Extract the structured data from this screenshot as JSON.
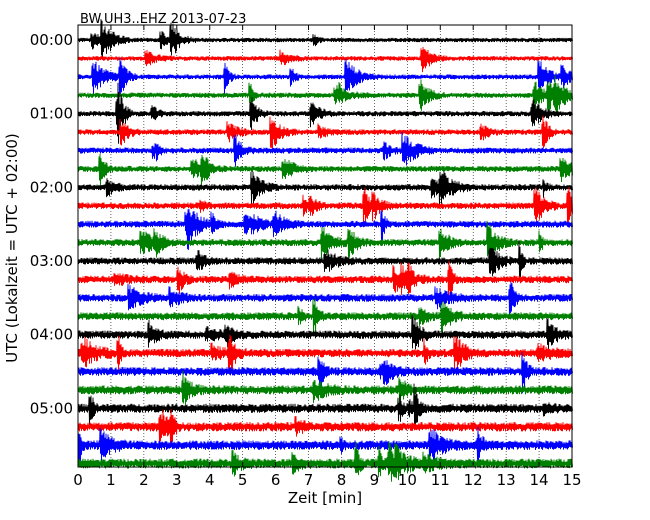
{
  "chart_data": {
    "type": "line",
    "title": "BW.UH3..EHZ 2013-07-23",
    "xlabel": "Zeit  [min]",
    "ylabel": "UTC (Lokalzeit = UTC + 02:00)",
    "xlim": [
      0,
      15
    ],
    "x_ticks": [
      "0",
      "1",
      "2",
      "3",
      "4",
      "5",
      "6",
      "7",
      "8",
      "9",
      "10",
      "11",
      "12",
      "13",
      "14",
      "15"
    ],
    "y_tick_labels": [
      "00:00",
      "01:00",
      "02:00",
      "03:00",
      "04:00",
      "05:00"
    ],
    "trace_interval_minutes": 15,
    "trace_count": 24,
    "trace_colors": [
      "#000000",
      "#ff0000",
      "#0000ff",
      "#008000"
    ],
    "grid": "vertical dotted lines at each minute",
    "series": [
      {
        "start": "00:00",
        "color": "#000000"
      },
      {
        "start": "00:15",
        "color": "#ff0000"
      },
      {
        "start": "00:30",
        "color": "#0000ff"
      },
      {
        "start": "00:45",
        "color": "#008000"
      },
      {
        "start": "01:00",
        "color": "#000000"
      },
      {
        "start": "01:15",
        "color": "#ff0000"
      },
      {
        "start": "01:30",
        "color": "#0000ff"
      },
      {
        "start": "01:45",
        "color": "#008000"
      },
      {
        "start": "02:00",
        "color": "#000000"
      },
      {
        "start": "02:15",
        "color": "#ff0000"
      },
      {
        "start": "02:30",
        "color": "#0000ff"
      },
      {
        "start": "02:45",
        "color": "#008000"
      },
      {
        "start": "03:00",
        "color": "#000000"
      },
      {
        "start": "03:15",
        "color": "#ff0000"
      },
      {
        "start": "03:30",
        "color": "#0000ff"
      },
      {
        "start": "03:45",
        "color": "#008000"
      },
      {
        "start": "04:00",
        "color": "#000000"
      },
      {
        "start": "04:15",
        "color": "#ff0000"
      },
      {
        "start": "04:30",
        "color": "#0000ff"
      },
      {
        "start": "04:45",
        "color": "#008000"
      },
      {
        "start": "05:00",
        "color": "#000000"
      },
      {
        "start": "05:15",
        "color": "#ff0000"
      },
      {
        "start": "05:30",
        "color": "#0000ff"
      },
      {
        "start": "05:45",
        "color": "#008000"
      }
    ]
  }
}
